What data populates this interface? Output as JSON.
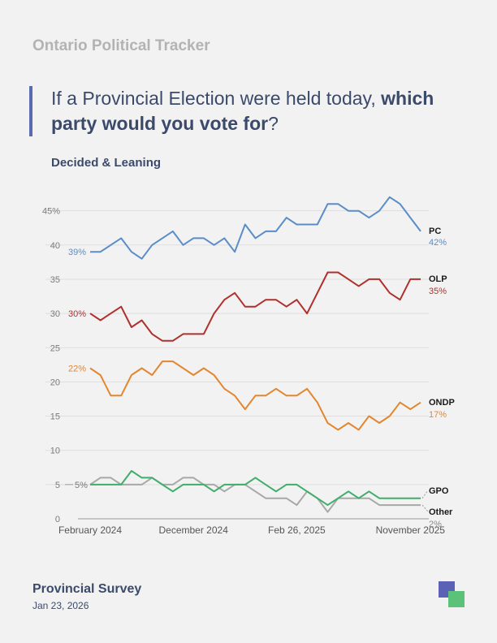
{
  "header": {
    "brand": "Ontario Political Tracker",
    "question_part1": "If a Provincial Election were held today, ",
    "question_bold": "which party would you vote for",
    "question_part3": "?",
    "subtitle": "Decided & Leaning"
  },
  "footer": {
    "title": "Provincial Survey",
    "date": "Jan 23, 2026"
  },
  "colors": {
    "logo_primary": "#5b62b5",
    "logo_secondary": "#5cc27a"
  },
  "chart_data": {
    "type": "line",
    "title": "If a Provincial Election were held today, which party would you vote for?",
    "subtitle": "Decided & Leaning",
    "ylim": [
      0,
      48
    ],
    "y_ticks": [
      "0",
      "5",
      "10",
      "15",
      "20",
      "25",
      "30",
      "35",
      "40",
      "45%"
    ],
    "y_tick_values": [
      0,
      5,
      10,
      15,
      20,
      25,
      30,
      35,
      40,
      45
    ],
    "x_tick_labels": [
      {
        "label": "February 2024",
        "index": 0
      },
      {
        "label": "December 2024",
        "index": 10
      },
      {
        "label": "Feb 26, 2025",
        "index": 20
      },
      {
        "label": "November 2025",
        "index": 31
      }
    ],
    "grid": true,
    "series": [
      {
        "name": "PC",
        "color": "#5a8dc8",
        "start_label": "39%",
        "end_label": "42%",
        "values": [
          39,
          39,
          40,
          41,
          39,
          38,
          40,
          41,
          42,
          40,
          41,
          41,
          40,
          41,
          39,
          43,
          41,
          42,
          42,
          44,
          43,
          43,
          43,
          46,
          46,
          45,
          45,
          44,
          45,
          47,
          46,
          44,
          42
        ]
      },
      {
        "name": "OLP",
        "color": "#b0302c",
        "start_label": "30%",
        "end_label": "35%",
        "values": [
          30,
          29,
          30,
          31,
          28,
          29,
          27,
          26,
          26,
          27,
          27,
          27,
          30,
          32,
          33,
          31,
          31,
          32,
          32,
          31,
          32,
          30,
          33,
          36,
          36,
          35,
          34,
          35,
          35,
          33,
          32,
          35,
          35
        ]
      },
      {
        "name": "ONDP",
        "color": "#e2872f",
        "start_label": "22%",
        "end_label": "17%",
        "values": [
          22,
          21,
          18,
          18,
          21,
          22,
          21,
          23,
          23,
          22,
          21,
          22,
          21,
          19,
          18,
          16,
          18,
          18,
          19,
          18,
          18,
          19,
          17,
          14,
          13,
          14,
          13,
          15,
          14,
          15,
          17,
          16,
          17
        ]
      },
      {
        "name": "GPO",
        "color": "#3fae6a",
        "start_label": "5%",
        "end_label": "",
        "values": [
          5,
          5,
          5,
          5,
          7,
          6,
          6,
          5,
          4,
          5,
          5,
          5,
          4,
          5,
          5,
          5,
          6,
          5,
          4,
          5,
          5,
          4,
          3,
          2,
          3,
          4,
          3,
          4,
          3,
          3,
          3,
          3,
          3
        ]
      },
      {
        "name": "Other",
        "color": "#a8a8a8",
        "start_label": "",
        "end_label": "2%",
        "values": [
          5,
          6,
          6,
          5,
          5,
          5,
          6,
          5,
          5,
          6,
          6,
          5,
          5,
          4,
          5,
          5,
          4,
          3,
          3,
          3,
          2,
          4,
          3,
          1,
          3,
          3,
          3,
          3,
          2,
          2,
          2,
          2,
          2
        ]
      }
    ]
  }
}
